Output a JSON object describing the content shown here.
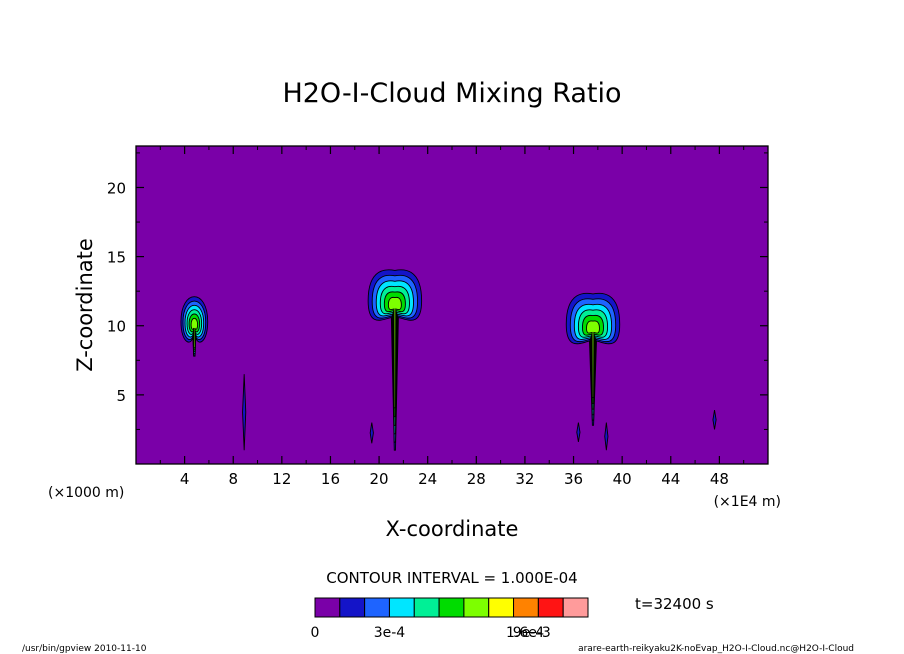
{
  "chart_data": {
    "type": "heatmap",
    "title": "H2O-I-Cloud Mixing Ratio",
    "xlabel": "X-coordinate",
    "ylabel": "Z-coordinate",
    "x_unit_left": "(×1000 m)",
    "x_unit_right": "(×1E4 m)",
    "xlim": [
      0,
      52
    ],
    "ylim": [
      0,
      23
    ],
    "x_ticks": [
      "4",
      "8",
      "12",
      "16",
      "20",
      "24",
      "28",
      "32",
      "36",
      "40",
      "44",
      "48"
    ],
    "y_ticks": [
      "5",
      "10",
      "15",
      "20"
    ],
    "contour_interval_text": "CONTOUR INTERVAL = 1.000E-04",
    "time_label": "t=32400 s",
    "colorbar": {
      "colors": [
        "#7a00a8",
        "#1414c8",
        "#1e64ff",
        "#00e6ff",
        "#00f096",
        "#00dc00",
        "#7dff00",
        "#ffff00",
        "#ff8200",
        "#ff1414",
        "#ff9b9b"
      ],
      "tick_labels": [
        "0",
        "3e-4",
        "9e-4",
        "1.6e-3"
      ],
      "tick_values": [
        0,
        0.0003,
        0.0009,
        0.0016
      ]
    },
    "clouds": [
      {
        "x_center": 4.8,
        "z_base": 7.8,
        "z_top": 12.3,
        "max_level": 6
      },
      {
        "x_center": 21.3,
        "z_base": 1.0,
        "z_top": 14.0,
        "max_level": 6
      },
      {
        "x_center": 37.6,
        "z_base": 2.8,
        "z_top": 12.3,
        "max_level": 6
      }
    ],
    "streaks": [
      {
        "x": 8.9,
        "z_bottom": 1.0,
        "z_top": 6.5
      },
      {
        "x": 19.4,
        "z_bottom": 1.5,
        "z_top": 3.0
      },
      {
        "x": 36.4,
        "z_bottom": 1.6,
        "z_top": 3.0
      },
      {
        "x": 38.7,
        "z_bottom": 1.0,
        "z_top": 3.0
      },
      {
        "x": 47.6,
        "z_bottom": 2.5,
        "z_top": 3.9
      }
    ]
  },
  "footer": {
    "left": "/usr/bin/gpview  2010-11-10",
    "right": "arare-earth-reikyaku2K-noEvap_H2O-I-Cloud.nc@H2O-I-Cloud"
  }
}
